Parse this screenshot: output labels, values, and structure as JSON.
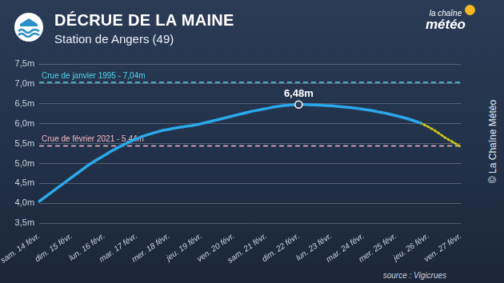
{
  "chart_data": {
    "type": "line",
    "title": "DÉCRUE DE LA MAINE",
    "subtitle": "Station de Angers (49)",
    "source": "source : Vigicrues",
    "copyright": "© La Chaîne Météo",
    "logo": [
      "la chaîne",
      "météo"
    ],
    "categories": [
      "sam. 14 févr.",
      null,
      null,
      null,
      "dim. 15 févr.",
      null,
      null,
      null,
      "lun. 16 févr.",
      null,
      null,
      null,
      "mar. 17 févr.",
      null,
      null,
      null,
      "mer. 18 févr.",
      null,
      null,
      null,
      "jeu. 19 févr.",
      null,
      null,
      null,
      "ven. 20 févr.",
      null,
      null,
      null,
      "sam. 21 févr.",
      null,
      null,
      null,
      "dim. 22 févr.",
      null,
      null,
      null,
      "lun. 23 févr.",
      null,
      null,
      null,
      "mar. 24 févr.",
      null,
      null,
      null,
      "mer. 25 févr.",
      null,
      null,
      null,
      "jeu. 26 févr.",
      null,
      null,
      null,
      "ven. 27 févr."
    ],
    "series": [
      {
        "color": "#2aa8ea",
        "line_style": "solid",
        "values": [
          4.05,
          4.2,
          4.35,
          4.5,
          4.65,
          4.8,
          4.95,
          5.08,
          5.2,
          5.32,
          5.43,
          5.53,
          5.62,
          5.7,
          5.76,
          5.82,
          5.86,
          5.9,
          5.93,
          5.96,
          6.0,
          6.05,
          6.1,
          6.15,
          6.2,
          6.25,
          6.3,
          6.34,
          6.38,
          6.42,
          6.45,
          6.47,
          6.48,
          6.48,
          6.47,
          6.46,
          6.45,
          6.43,
          6.41,
          6.39,
          6.36,
          6.33,
          6.29,
          6.25,
          6.2,
          6.15,
          6.09,
          6.02,
          null,
          null,
          null,
          null,
          null
        ]
      },
      {
        "color": "#c9c21e",
        "line_style": "dotted",
        "values": [
          null,
          null,
          null,
          null,
          null,
          null,
          null,
          null,
          null,
          null,
          null,
          null,
          null,
          null,
          null,
          null,
          null,
          null,
          null,
          null,
          null,
          null,
          null,
          null,
          null,
          null,
          null,
          null,
          null,
          null,
          null,
          null,
          null,
          null,
          null,
          null,
          null,
          null,
          null,
          null,
          null,
          null,
          null,
          null,
          null,
          null,
          null,
          6.02,
          5.92,
          5.8,
          5.66,
          5.54,
          5.42
        ]
      }
    ],
    "ylim": [
      3.5,
      7.5
    ],
    "yticks": [
      {
        "value": 3.5,
        "label": "3,5m"
      },
      {
        "value": 4.0,
        "label": "4,0m"
      },
      {
        "value": 4.5,
        "label": "4,5m"
      },
      {
        "value": 5.0,
        "label": "5,0m"
      },
      {
        "value": 5.5,
        "label": "5,5m"
      },
      {
        "value": 6.0,
        "label": "6,0m"
      },
      {
        "value": 6.5,
        "label": "6,5m"
      },
      {
        "value": 7.0,
        "label": "7,0m"
      },
      {
        "value": 7.5,
        "label": "7,5m"
      }
    ],
    "grid": true,
    "annotations": [
      {
        "type": "hline",
        "text": "Crue de janvier 1995 - 7,04m",
        "value": 7.04,
        "color": "#4fd2e8",
        "line_style": "dashed"
      },
      {
        "type": "hline",
        "text": "Crue de février 2021 - 5,44m",
        "value": 5.44,
        "color": "#f2b9c3",
        "line_style": "dashed"
      },
      {
        "type": "point",
        "text": "6,48m",
        "x": "dim. 22 févr.",
        "value": 6.48,
        "color": "#ffffff"
      }
    ]
  }
}
